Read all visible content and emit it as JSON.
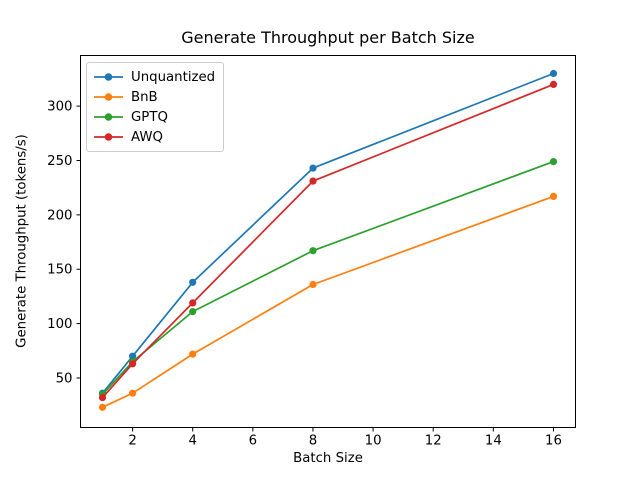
{
  "figure": {
    "title": "Generate Throughput per Batch Size",
    "xlabel": "Batch Size",
    "ylabel": "Generate Throughput (tokens/s)"
  },
  "chart_data": {
    "type": "line",
    "title": "Generate Throughput per Batch Size",
    "xlabel": "Batch Size",
    "ylabel": "Generate Throughput (tokens/s)",
    "x": [
      1,
      2,
      4,
      8,
      16
    ],
    "series": [
      {
        "name": "Unquantized",
        "color": "#1f77b4",
        "values": [
          36,
          70,
          138,
          243,
          330
        ]
      },
      {
        "name": "BnB",
        "color": "#ff7f0e",
        "values": [
          23,
          36,
          72,
          136,
          217
        ]
      },
      {
        "name": "GPTQ",
        "color": "#2ca02c",
        "values": [
          35,
          65,
          111,
          167,
          249
        ]
      },
      {
        "name": "AWQ",
        "color": "#d62728",
        "values": [
          32,
          63,
          119,
          231,
          320
        ]
      }
    ],
    "x_ticks": [
      2,
      4,
      6,
      8,
      10,
      12,
      14,
      16
    ],
    "y_ticks": [
      50,
      100,
      150,
      200,
      250,
      300
    ],
    "xlim": [
      0.25,
      16.75
    ],
    "ylim": [
      4,
      347
    ],
    "grid": false,
    "legend_position": "upper left",
    "marker": "o",
    "axis_color": "#000000",
    "background_color": "#ffffff"
  }
}
